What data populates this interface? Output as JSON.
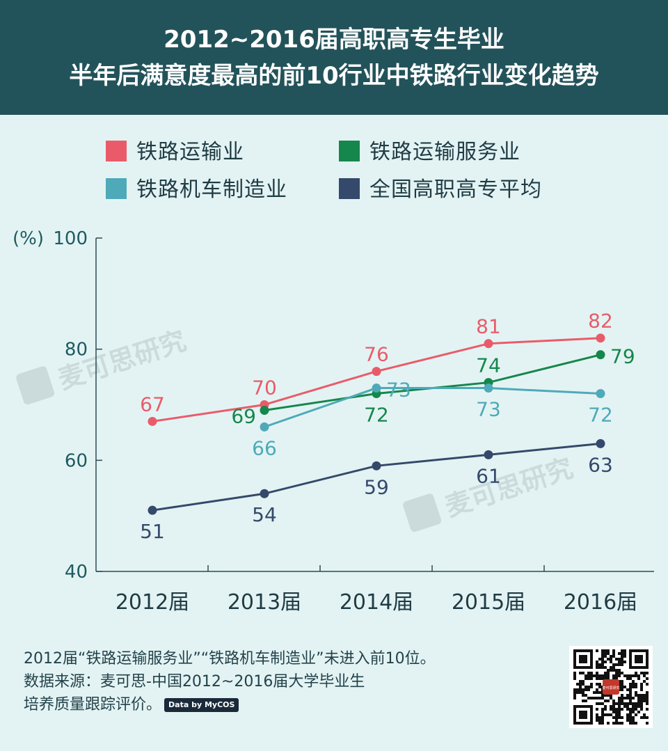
{
  "header": {
    "line1": "2012~2016届高职高专生毕业",
    "line2": "半年后满意度最高的前10行业中铁路行业变化趋势"
  },
  "colors": {
    "header_bg": "#23535a",
    "background": "#e3f3f3",
    "axis": "#2f4a52",
    "tick_text": "#1f5a60",
    "railway_transport": "#ea5b6a",
    "railway_service": "#15874c",
    "locomotive_mfg": "#4eaab8",
    "national_avg": "#34496b"
  },
  "chart_data": {
    "type": "line",
    "title": "2012~2016届高职高专生毕业半年后满意度最高的前10行业中铁路行业变化趋势",
    "ylabel": "(%)",
    "xlabel": "",
    "categories": [
      "2012届",
      "2013届",
      "2014届",
      "2015届",
      "2016届"
    ],
    "ylim": [
      40,
      100
    ],
    "yticks": [
      40,
      60,
      80,
      100
    ],
    "legend_position": "top",
    "grid": false,
    "series": [
      {
        "name": "铁路运输业",
        "color": "#ea5b6a",
        "values": [
          67,
          70,
          76,
          81,
          82
        ],
        "label_pos": [
          "above",
          "above",
          "above",
          "above",
          "above"
        ]
      },
      {
        "name": "铁路运输服务业",
        "color": "#15874c",
        "values": [
          null,
          69,
          72,
          74,
          79
        ],
        "label_pos": [
          "above",
          "left",
          "below",
          "above",
          "right"
        ]
      },
      {
        "name": "铁路机车制造业",
        "color": "#4eaab8",
        "values": [
          null,
          66,
          73,
          73,
          72
        ],
        "label_pos": [
          "below",
          "below",
          "right",
          "below",
          "below"
        ]
      },
      {
        "name": "全国高职高专平均",
        "color": "#34496b",
        "values": [
          51,
          54,
          59,
          61,
          63
        ],
        "label_pos": [
          "below",
          "below",
          "below",
          "below",
          "below"
        ]
      }
    ]
  },
  "watermarks": [
    "麦可思研究",
    "麦可思研究"
  ],
  "notes": {
    "line1": "2012届“铁路运输服务业”“铁路机车制造业”未进入前10位。",
    "line2": "数据来源：麦可思-中国2012~2016届大学毕业生",
    "line3": "培养质量跟踪评价。",
    "badge": "Data by MyCOS"
  },
  "qr_label": "麦可思研究"
}
